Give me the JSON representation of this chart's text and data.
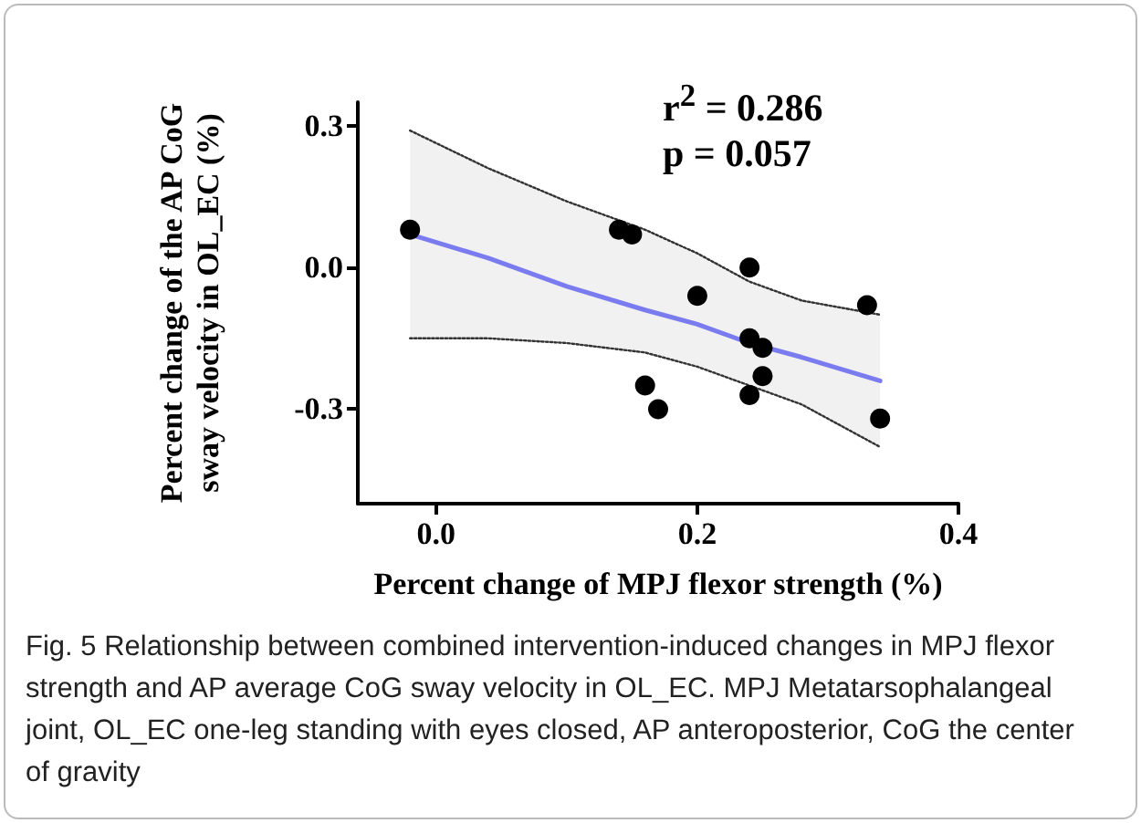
{
  "chart_data": {
    "type": "scatter",
    "xlabel": "Percent change of MPJ flexor strength (%)",
    "ylabel": "Percent change of the AP CoG sway velocity in OL_EC (%)",
    "xlim": [
      -0.06,
      0.4
    ],
    "xticks": [
      {
        "value": 0,
        "label": "0.0"
      },
      {
        "value": 0.2,
        "label": "0.2"
      },
      {
        "value": 0.4,
        "label": "0.4"
      }
    ],
    "ylim": [
      -0.5,
      0.35
    ],
    "yticks": [
      {
        "value": -0.3,
        "label": "-0.3"
      },
      {
        "value": 0,
        "label": "0.0"
      },
      {
        "value": 0.3,
        "label": "0.3"
      }
    ],
    "grid": false,
    "series": [
      {
        "type": "line",
        "color": "#7b7bf0",
        "marker": "none",
        "line_style": "solid",
        "x": [
          -0.02,
          0.04,
          0.1,
          0.16,
          0.2,
          0.24,
          0.28,
          0.34
        ],
        "values": [
          0.07,
          0.02,
          -0.04,
          -0.09,
          -0.12,
          -0.16,
          -0.19,
          -0.24
        ],
        "lower": [
          -0.15,
          -0.15,
          -0.16,
          -0.18,
          -0.21,
          -0.25,
          -0.29,
          -0.38
        ],
        "upper": [
          0.29,
          0.21,
          0.14,
          0.08,
          0.03,
          -0.03,
          -0.07,
          -0.1
        ]
      },
      {
        "type": "line",
        "color": "#333333",
        "marker": "none",
        "line_style": "dotted",
        "x": [
          -0.02,
          0.04,
          0.1,
          0.16,
          0.2,
          0.24,
          0.28,
          0.34
        ],
        "values": [
          0.29,
          0.21,
          0.14,
          0.08,
          0.03,
          -0.03,
          -0.07,
          -0.1
        ]
      },
      {
        "type": "line",
        "color": "#333333",
        "marker": "none",
        "line_style": "dotted",
        "x": [
          -0.02,
          0.04,
          0.1,
          0.16,
          0.2,
          0.24,
          0.28,
          0.34
        ],
        "values": [
          -0.15,
          -0.15,
          -0.16,
          -0.18,
          -0.21,
          -0.25,
          -0.29,
          -0.38
        ]
      },
      {
        "color": "#000000",
        "marker": "circle",
        "x": [
          -0.02,
          0.14,
          0.15,
          0.2,
          0.24,
          0.24,
          0.25,
          0.25,
          0.24,
          0.16,
          0.17,
          0.33,
          0.34
        ],
        "values": [
          0.08,
          0.08,
          0.07,
          -0.06,
          0.0,
          -0.15,
          -0.17,
          -0.23,
          -0.27,
          -0.25,
          -0.3,
          -0.08,
          -0.32
        ]
      }
    ],
    "annotations": [
      "r$^{2}$ = 0.286",
      "p = 0.057",
      "Fig. 5  Relationship between combined intervention-induced changes in MPJ flexor strength and AP average CoG sway velocity in OL_EC. MPJ Metatarsophalangeal joint, OL_EC one-leg standing with eyes closed, AP anteroposterior, CoG the center of gravity"
    ]
  }
}
